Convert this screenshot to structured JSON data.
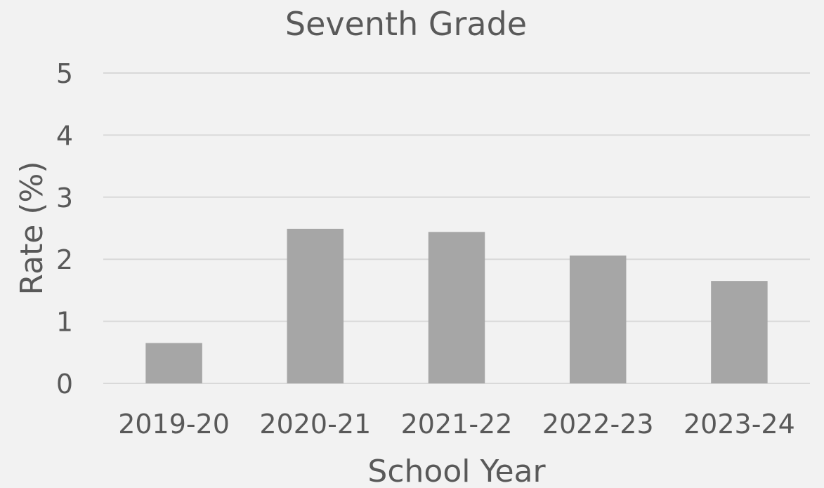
{
  "chart_data": {
    "type": "bar",
    "title": "Seventh Grade",
    "xlabel": "School Year",
    "ylabel": "Rate (%)",
    "categories": [
      "2019-20",
      "2020-21",
      "2021-22",
      "2022-23",
      "2023-24"
    ],
    "values": [
      0.65,
      2.49,
      2.44,
      2.06,
      1.65
    ],
    "ylim": [
      0,
      5
    ],
    "yticks": [
      0,
      1,
      2,
      3,
      4,
      5
    ],
    "grid": true,
    "legend": "none",
    "bar_color": "#a6a6a6",
    "background_color": "#f2f2f2",
    "grid_color": "#d9d9d9",
    "text_color": "#595959"
  }
}
